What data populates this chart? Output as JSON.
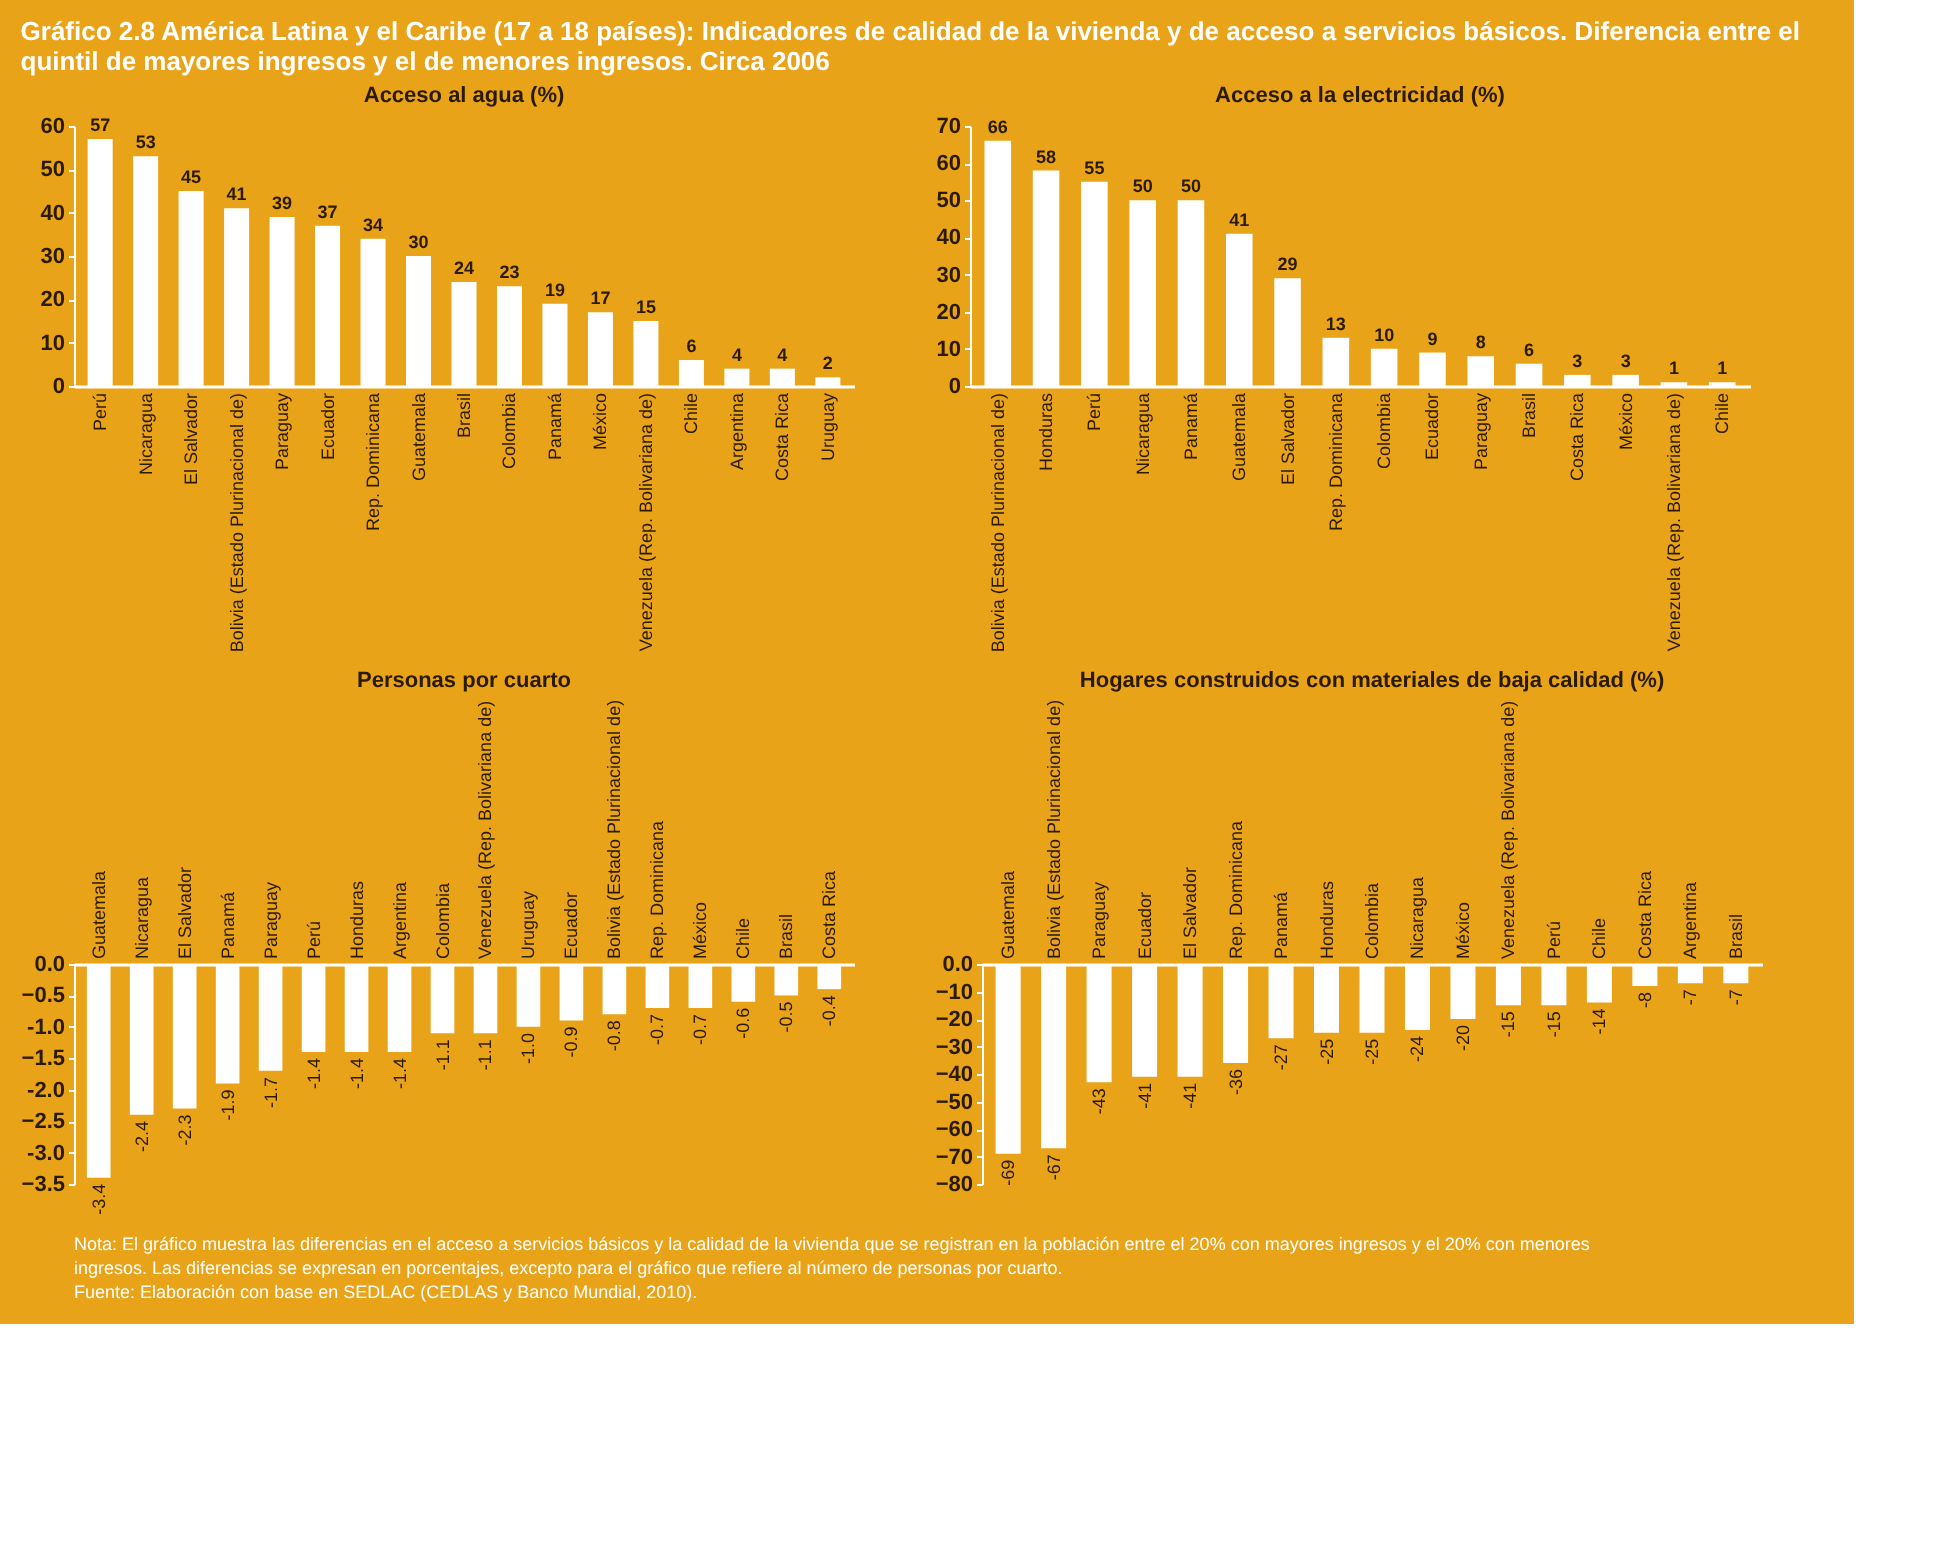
{
  "chart_data": [
    {
      "type": "other",
      "title": "Gráfico 2.8 América Latina y el Caribe (17 a 18 países): Indicadores de calidad de la vivienda y de acceso a servicios básicos. Diferencia entre el quintil de mayores ingresos y el de menores ingresos. Circa 2006",
      "annotations": [
        "Nota: El gráfico muestra las diferencias en el acceso a servicios básicos y la calidad de la vivienda que se registran en la población entre el 20% con mayores ingresos y el 20% con menores ingresos. Las diferencias se expresan en porcentajes, excepto para el gráfico que refiere al número de personas por cuarto.",
        "Fuente: Elaboración con base en SEDLAC (CEDLAS y Banco Mundial, 2010)."
      ]
    },
    {
      "type": "bar",
      "title": "Acceso al agua (%)",
      "categories": [
        "Perú",
        "Nicaragua",
        "El Salvador",
        "Bolivia (Estado Plurinacional de)",
        "Paraguay",
        "Ecuador",
        "Rep. Dominicana",
        "Guatemala",
        "Brasil",
        "Colombia",
        "Panamá",
        "México",
        "Venezuela (Rep. Bolivariana de)",
        "Chile",
        "Argentina",
        "Costa Rica",
        "Uruguay"
      ],
      "values": [
        57,
        53,
        45,
        41,
        39,
        37,
        34,
        30,
        24,
        23,
        19,
        17,
        15,
        6,
        4,
        4,
        2
      ],
      "color": "#ffffff",
      "ylim": [
        0,
        60
      ],
      "yticks": [
        0,
        10,
        20,
        30,
        40,
        50,
        60
      ],
      "data_labels": true,
      "grid": false
    },
    {
      "type": "bar",
      "title": "Acceso a la electricidad (%)",
      "categories": [
        "Bolivia (Estado Plurinacional de)",
        "Honduras",
        "Perú",
        "Nicaragua",
        "Panamá",
        "Guatemala",
        "El Salvador",
        "Rep. Dominicana",
        "Colombia",
        "Ecuador",
        "Paraguay",
        "Brasil",
        "Costa Rica",
        "México",
        "Venezuela (Rep. Bolivariana de)",
        "Chile"
      ],
      "values": [
        66,
        58,
        55,
        50,
        50,
        41,
        29,
        13,
        10,
        9,
        8,
        6,
        3,
        3,
        1,
        1
      ],
      "color": "#ffffff",
      "ylim": [
        0,
        70
      ],
      "yticks": [
        0,
        10,
        20,
        30,
        40,
        50,
        60,
        70
      ],
      "data_labels": true,
      "grid": false
    },
    {
      "type": "bar",
      "title": "Personas por cuarto",
      "categories": [
        "Guatemala",
        "Nicaragua",
        "El Salvador",
        "Panamá",
        "Paraguay",
        "Perú",
        "Honduras",
        "Argentina",
        "Colombia",
        "Venezuela (Rep. Bolivariana de)",
        "Uruguay",
        "Ecuador",
        "Bolivia (Estado Plurinacional de)",
        "Rep. Dominicana",
        "México",
        "Chile",
        "Brasil",
        "Costa Rica"
      ],
      "values": [
        -3.4,
        -2.4,
        -2.3,
        -1.9,
        -1.7,
        -1.4,
        -1.4,
        -1.4,
        -1.1,
        -1.1,
        -1.0,
        -0.9,
        -0.8,
        -0.7,
        -0.7,
        -0.6,
        -0.5,
        -0.4
      ],
      "value_labels": [
        "-3.4",
        "-2.4",
        "-2.3",
        "-1.9",
        "-1.7",
        "-1.4",
        "-1.4",
        "-1.4",
        "-1.1",
        "-1.1",
        "-1.0",
        "-0.9",
        "-0.8",
        "-0.7",
        "-0.7",
        "-0.6",
        "-0.5",
        "-0.4"
      ],
      "color": "#ffffff",
      "ylim": [
        -3.5,
        0
      ],
      "yticks": [
        {
          "value": 0,
          "label": "0.0"
        },
        -0.5,
        {
          "value": -1,
          "label": "-1.0"
        },
        -1.5,
        {
          "value": -2,
          "label": "-2.0"
        },
        -2.5,
        {
          "value": -3,
          "label": "-3.0"
        },
        -3.5
      ],
      "grid": false
    },
    {
      "type": "bar",
      "title": "Hogares construidos con materiales de baja calidad (%)",
      "categories": [
        "Guatemala",
        "Bolivia (Estado Plurinacional de)",
        "Paraguay",
        "Ecuador",
        "El Salvador",
        "Rep. Dominicana",
        "Panamá",
        "Honduras",
        "Colombia",
        "Nicaragua",
        "México",
        "Venezuela (Rep. Bolivariana de)",
        "Perú",
        "Chile",
        "Costa Rica",
        "Argentina",
        "Brasil"
      ],
      "values": [
        -69,
        -67,
        -43,
        -41,
        -41,
        -36,
        -27,
        -25,
        -25,
        -24,
        -20,
        -15,
        -15,
        -14,
        -8,
        -7,
        -7
      ],
      "color": "#ffffff",
      "ylim": [
        -80,
        0
      ],
      "yticks": [
        {
          "value": 0,
          "label": "0.0"
        },
        -10,
        -20,
        -30,
        -40,
        -50,
        -60,
        -70,
        -80
      ],
      "data_labels": true,
      "grid": false
    }
  ]
}
